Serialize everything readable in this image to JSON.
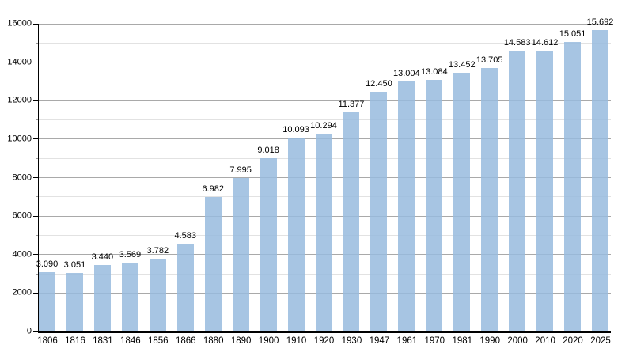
{
  "chart_data": {
    "type": "bar",
    "title": "",
    "xlabel": "",
    "ylabel": "",
    "categories": [
      "1806",
      "1816",
      "1831",
      "1846",
      "1856",
      "1866",
      "1880",
      "1890",
      "1900",
      "1910",
      "1920",
      "1930",
      "1947",
      "1961",
      "1970",
      "1981",
      "1990",
      "2000",
      "2010",
      "2020",
      "2025"
    ],
    "values": [
      3090,
      3051,
      3440,
      3569,
      3782,
      4583,
      6982,
      7995,
      9018,
      10093,
      10294,
      11377,
      12450,
      13004,
      13084,
      13452,
      13705,
      14583,
      14612,
      15051,
      15692
    ],
    "value_labels": [
      "3.090",
      "3.051",
      "3.440",
      "3.569",
      "3.782",
      "4.583",
      "6.982",
      "7.995",
      "9.018",
      "10.093",
      "10.294",
      "11.377",
      "12.450",
      "13.004",
      "13.084",
      "13.452",
      "13.705",
      "14.583",
      "14.612",
      "15.051",
      "15.692"
    ],
    "ylim": [
      0,
      16000
    ],
    "y_major_step": 2000,
    "y_minor_step": 1000,
    "y_tick_labels": [
      "0",
      "2000",
      "4000",
      "6000",
      "8000",
      "10000",
      "12000",
      "14000",
      "16000"
    ],
    "grid": true,
    "legend_position": "none",
    "colors": {
      "bar_fill": "rgba(152,187,222,0.85)",
      "bar_fill_solid": "#a6c3e1",
      "gridline_major": "#a9a9a9",
      "gridline_minor": "#e2e2e2",
      "axis": "#000000",
      "tick_major": "#000000",
      "tick_minor": "#999999",
      "text": "#000000",
      "background": "#ffffff"
    }
  }
}
